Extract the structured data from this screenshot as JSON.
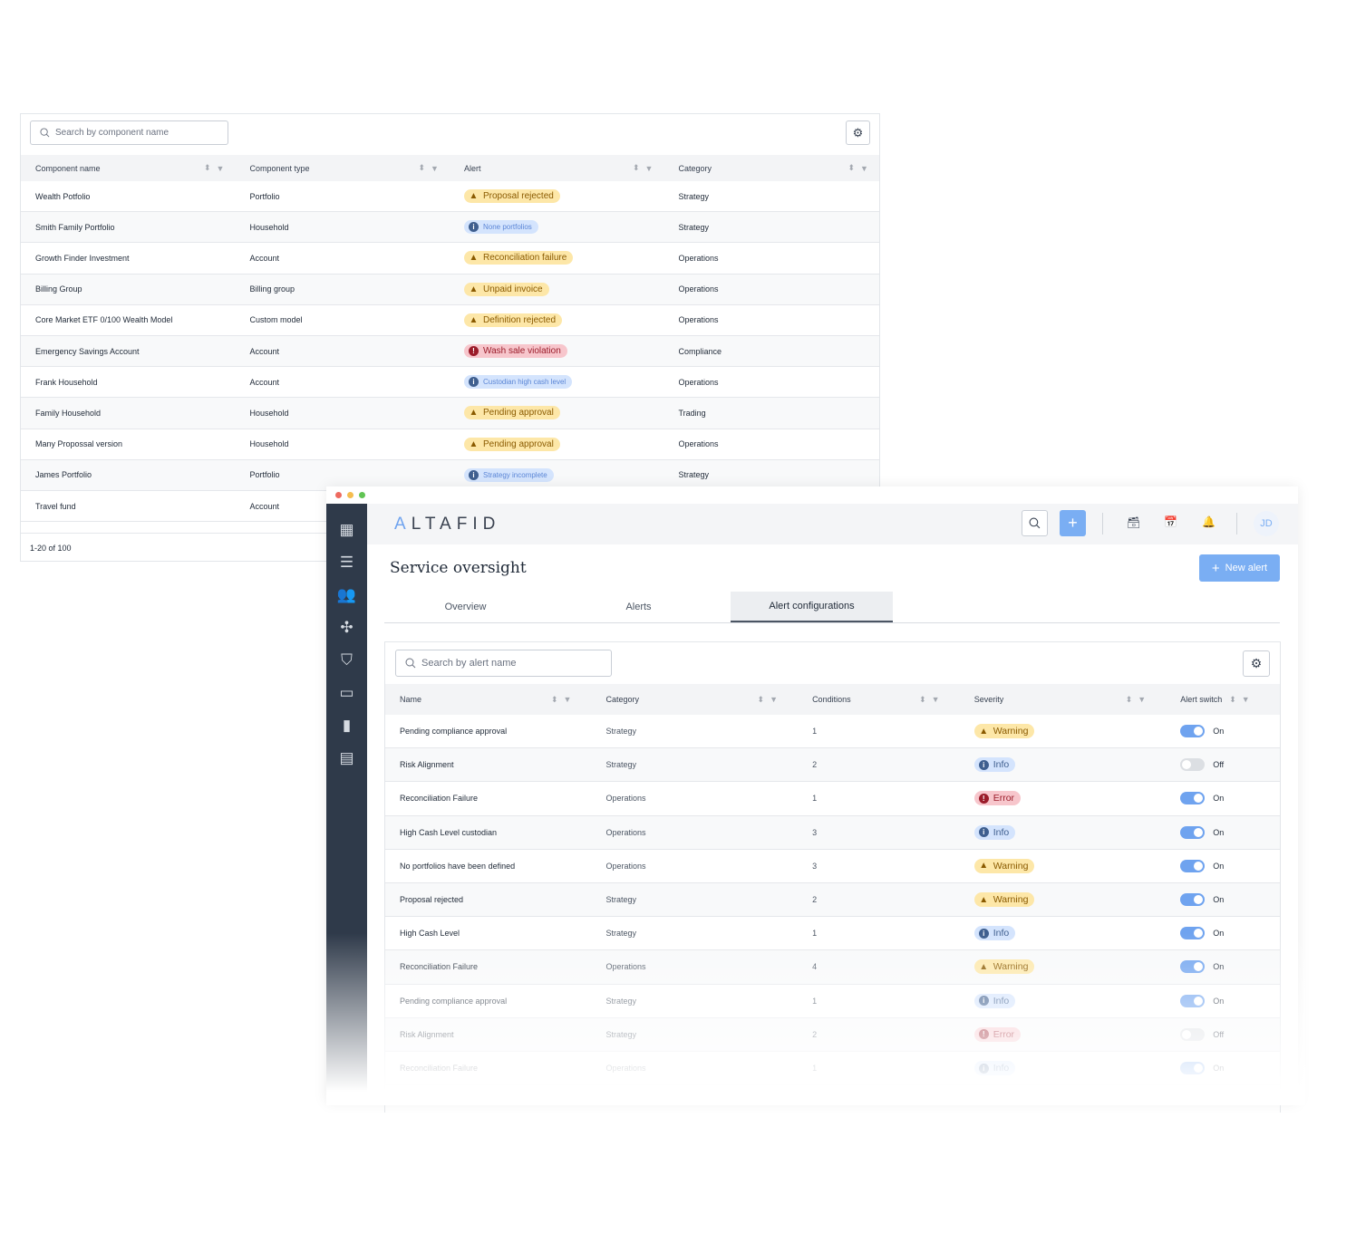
{
  "components": {
    "search_placeholder": "Search by component name",
    "columns": [
      "Component name",
      "Component type",
      "Alert",
      "Category"
    ],
    "rows": [
      {
        "name": "Wealth Potfolio",
        "type": "Portfolio",
        "alert": "Proposal rejected",
        "level": "warn",
        "category": "Strategy"
      },
      {
        "name": "Smith Family Portfolio",
        "type": "Household",
        "alert": "None portfolios",
        "level": "info",
        "category": "Strategy"
      },
      {
        "name": "Growth Finder Investment",
        "type": "Account",
        "alert": "Reconciliation failure",
        "level": "warn",
        "category": "Operations"
      },
      {
        "name": "Billing Group",
        "type": "Billing group",
        "alert": "Unpaid invoice",
        "level": "warn",
        "category": "Operations"
      },
      {
        "name": "Core Market ETF 0/100 Wealth Model",
        "type": "Custom model",
        "alert": "Definition rejected",
        "level": "warn",
        "category": "Operations"
      },
      {
        "name": "Emergency Savings Account",
        "type": "Account",
        "alert": "Wash sale violation",
        "level": "err",
        "category": "Compliance"
      },
      {
        "name": "Frank Household",
        "type": "Account",
        "alert": "Custodian high cash level",
        "level": "info",
        "category": "Operations"
      },
      {
        "name": "Family Household",
        "type": "Household",
        "alert": "Pending approval",
        "level": "warn",
        "category": "Trading"
      },
      {
        "name": "Many Propossal version",
        "type": "Household",
        "alert": "Pending approval",
        "level": "warn",
        "category": "Operations"
      },
      {
        "name": "James Portfolio",
        "type": "Portfolio",
        "alert": "Strategy incomplete",
        "level": "info",
        "category": "Strategy"
      },
      {
        "name": "Travel fund",
        "type": "Account",
        "alert": "",
        "level": "",
        "category": ""
      }
    ],
    "pagination": "1-20 of 100"
  },
  "app": {
    "logo": "ALTAFID",
    "user_initials": "JD",
    "page_title": "Service oversight",
    "new_alert_label": "New alert",
    "tabs": [
      {
        "label": "Overview"
      },
      {
        "label": "Alerts"
      },
      {
        "label": "Alert configurations",
        "active": true
      }
    ],
    "sidebar_icons": [
      "dashboard-icon",
      "checklist-icon",
      "users-icon",
      "puzzle-icon",
      "basket-icon",
      "money-icon",
      "bar-chart-icon",
      "archive-icon"
    ],
    "colors": {
      "accent": "#6fa3ef",
      "sidebar": "#2f3a4a"
    }
  },
  "alerts": {
    "search_placeholder": "Search by alert name",
    "columns": [
      "Name",
      "Category",
      "Conditions",
      "Severity",
      "Alert switch"
    ],
    "severity_labels": {
      "warn": "Warning",
      "info": "Info",
      "err": "Error"
    },
    "rows": [
      {
        "name": "Pending compliance approval",
        "category": "Strategy",
        "conditions": "1",
        "severity": "warn",
        "on": true,
        "switch": "On"
      },
      {
        "name": "Risk Alignment",
        "category": "Strategy",
        "conditions": "2",
        "severity": "info",
        "on": false,
        "switch": "Off"
      },
      {
        "name": "Reconciliation Failure",
        "category": "Operations",
        "conditions": "1",
        "severity": "err",
        "on": true,
        "switch": "On"
      },
      {
        "name": "High Cash Level custodian",
        "category": "Operations",
        "conditions": "3",
        "severity": "info",
        "on": true,
        "switch": "On"
      },
      {
        "name": "No portfolios have been defined",
        "category": "Operations",
        "conditions": "3",
        "severity": "warn",
        "on": true,
        "switch": "On"
      },
      {
        "name": "Proposal rejected",
        "category": "Strategy",
        "conditions": "2",
        "severity": "warn",
        "on": true,
        "switch": "On"
      },
      {
        "name": "High Cash Level",
        "category": "Strategy",
        "conditions": "1",
        "severity": "info",
        "on": true,
        "switch": "On"
      },
      {
        "name": "Reconciliation Failure",
        "category": "Operations",
        "conditions": "4",
        "severity": "warn",
        "on": true,
        "switch": "On"
      },
      {
        "name": "Pending compliance approval",
        "category": "Strategy",
        "conditions": "1",
        "severity": "info",
        "on": true,
        "switch": "On"
      },
      {
        "name": "Risk Alignment",
        "category": "Strategy",
        "conditions": "2",
        "severity": "err",
        "on": false,
        "switch": "Off"
      },
      {
        "name": "Reconciliation Failure",
        "category": "Operations",
        "conditions": "1",
        "severity": "info",
        "on": true,
        "switch": "On"
      }
    ]
  }
}
